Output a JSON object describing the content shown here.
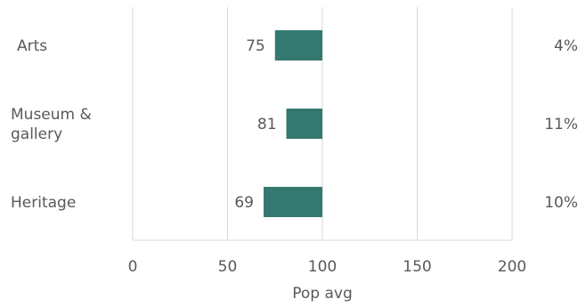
{
  "chart_data": {
    "type": "bar",
    "orientation": "horizontal",
    "reference_value": 100,
    "categories": [
      {
        "lines": [
          "Arts"
        ]
      },
      {
        "lines": [
          "Museum &",
          "gallery"
        ]
      },
      {
        "lines": [
          "Heritage"
        ]
      }
    ],
    "values": [
      75,
      81,
      69
    ],
    "right_labels": [
      "4%",
      "11%",
      "10%"
    ],
    "xlabel": "Pop avg",
    "xlim": [
      0,
      200
    ],
    "xticks": [
      0,
      50,
      100,
      150,
      200
    ],
    "grid": "vertical",
    "bar_color": "#357870"
  }
}
